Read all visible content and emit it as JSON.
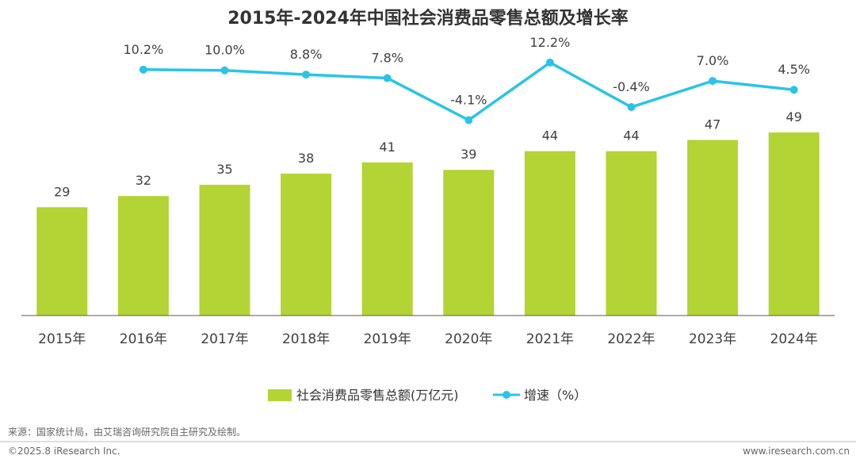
{
  "chart_data": {
    "type": "bar",
    "title": "2015年-2024年中国社会消费品零售总额及增长率",
    "categories": [
      "2015年",
      "2016年",
      "2017年",
      "2018年",
      "2019年",
      "2020年",
      "2021年",
      "2022年",
      "2023年",
      "2024年"
    ],
    "series": [
      {
        "name": "社会消费品零售总额(万亿元)",
        "type": "bar",
        "color": "#b4d334",
        "values": [
          29,
          32,
          35,
          38,
          41,
          39,
          44,
          44,
          47,
          49
        ],
        "labels": [
          "29",
          "32",
          "35",
          "38",
          "41",
          "39",
          "44",
          "44",
          "47",
          "49"
        ]
      },
      {
        "name": "增速（%）",
        "type": "line",
        "color": "#29c4e8",
        "values": [
          null,
          10.2,
          10.0,
          8.8,
          7.8,
          -4.1,
          12.2,
          -0.4,
          7.0,
          4.5
        ],
        "labels": [
          "",
          "10.2%",
          "10.0%",
          "8.8%",
          "7.8%",
          "-4.1%",
          "12.2%",
          "-0.4%",
          "7.0%",
          "4.5%"
        ]
      }
    ],
    "ylim_bar": [
      0,
      59
    ],
    "ylim_line": [
      -6,
      16
    ],
    "grid": false,
    "legend_position": "bottom-center"
  },
  "footer": {
    "source": "来源：国家统计局，由艾瑞咨询研究院自主研究及绘制。",
    "copyright": "©2025.8 iResearch Inc.",
    "website": "www.iresearch.com.cn"
  }
}
